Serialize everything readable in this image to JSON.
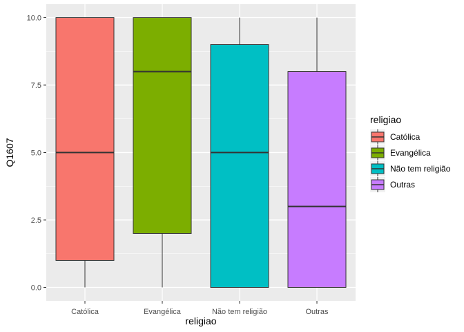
{
  "chart_data": {
    "type": "boxplot",
    "xlabel": "religiao",
    "ylabel": "Q1607",
    "ylim": [
      -0.5,
      10.5
    ],
    "yticks": [
      0.0,
      2.5,
      5.0,
      7.5,
      10.0
    ],
    "ytick_labels": [
      "0.0",
      "2.5",
      "5.0",
      "7.5",
      "10.0"
    ],
    "grid": true,
    "legend": {
      "title": "religiao",
      "position": "right"
    },
    "categories": [
      "Católica",
      "Evangélica",
      "Não tem religião",
      "Outras"
    ],
    "series": [
      {
        "name": "Católica",
        "color": "#F8766D",
        "whisker_low": 0,
        "q1": 1,
        "median": 5,
        "q3": 10,
        "whisker_high": 10
      },
      {
        "name": "Evangélica",
        "color": "#7CAE00",
        "whisker_low": 0,
        "q1": 2,
        "median": 8,
        "q3": 10,
        "whisker_high": 10
      },
      {
        "name": "Não tem religião",
        "color": "#00BFC4",
        "whisker_low": 0,
        "q1": 0,
        "median": 5,
        "q3": 9,
        "whisker_high": 10
      },
      {
        "name": "Outras",
        "color": "#C77CFF",
        "whisker_low": 0,
        "q1": 0,
        "median": 3,
        "q3": 8,
        "whisker_high": 10
      }
    ]
  }
}
